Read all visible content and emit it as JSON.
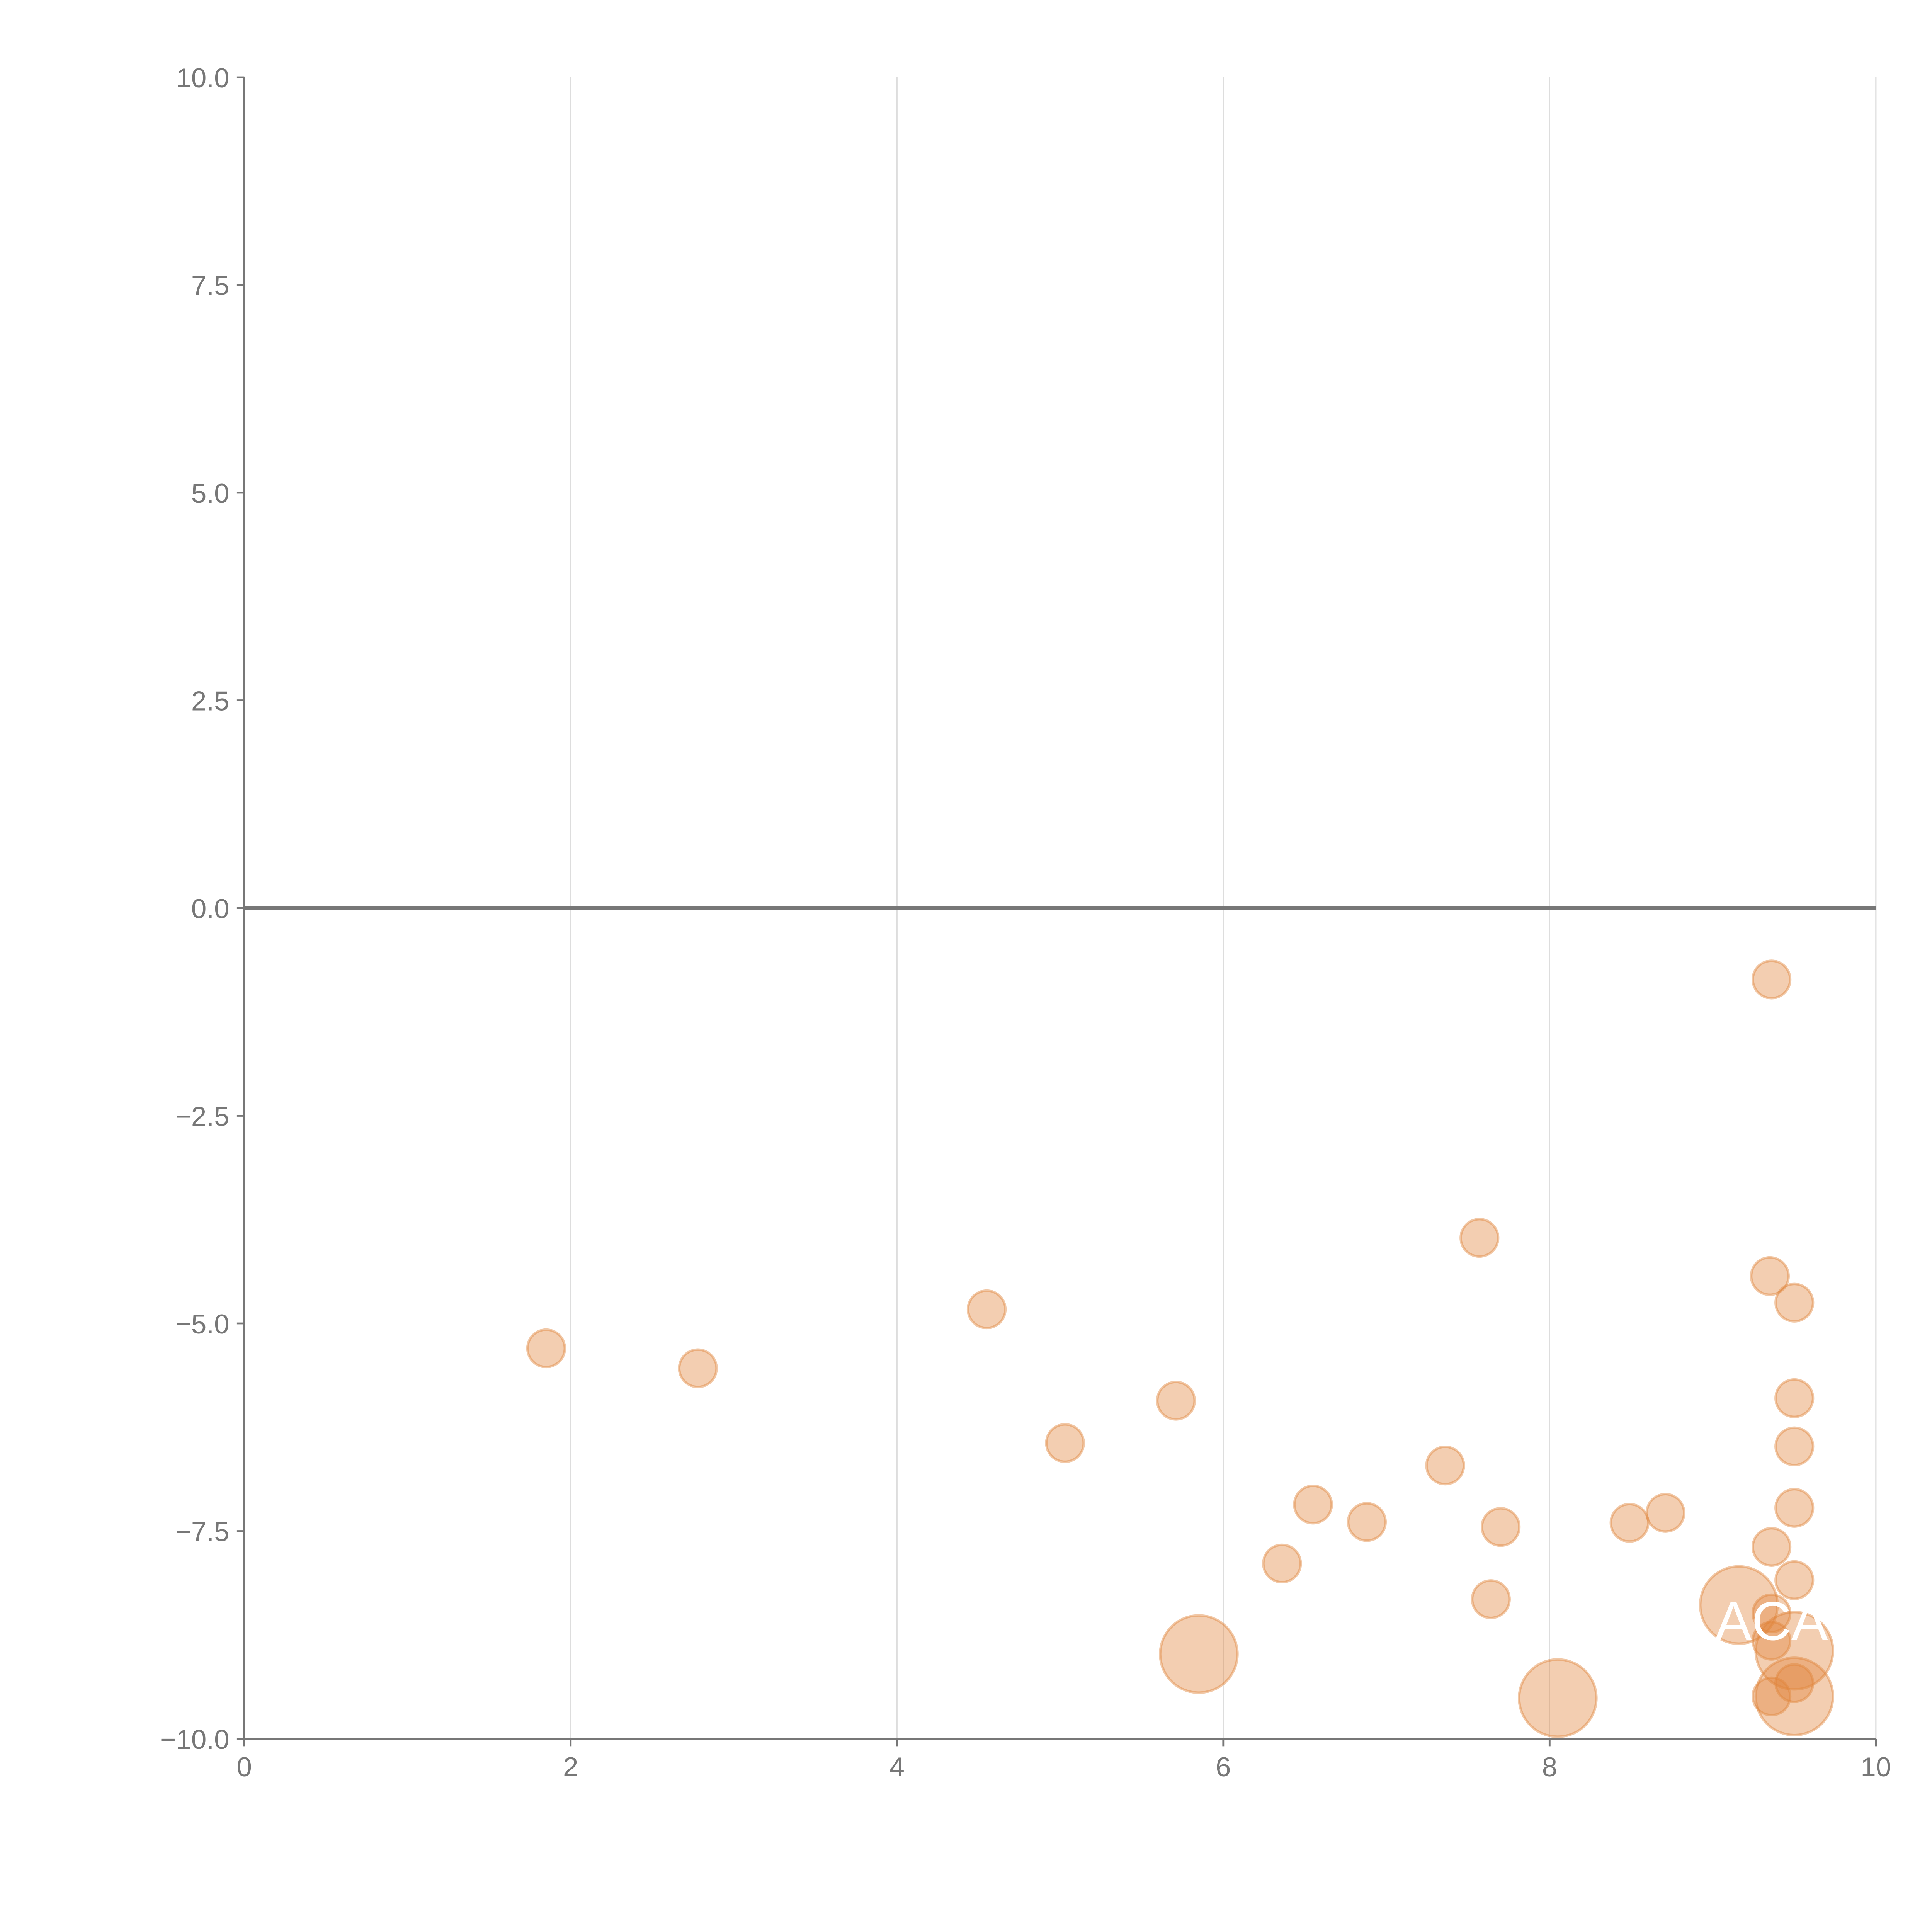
{
  "chart_data": {
    "type": "scatter",
    "title": "",
    "xlabel": "",
    "ylabel": "",
    "xlim": [
      0,
      10
    ],
    "ylim": [
      -10,
      10
    ],
    "xticks": [
      "0",
      "2",
      "4",
      "6",
      "8",
      "10"
    ],
    "yticks": [
      "10.0",
      "7.5",
      "5.0",
      "2.5",
      "0.0",
      "−2.5",
      "−5.0",
      "−7.5",
      "−10.0"
    ],
    "grid": "vertical",
    "zero_line": true,
    "color": "#e0853c",
    "points": [
      {
        "x": 9.36,
        "y": -0.86,
        "size": 1
      },
      {
        "x": 7.57,
        "y": -3.97,
        "size": 1
      },
      {
        "x": 9.35,
        "y": -4.43,
        "size": 1
      },
      {
        "x": 9.5,
        "y": -4.75,
        "size": 1
      },
      {
        "x": 4.55,
        "y": -4.83,
        "size": 1
      },
      {
        "x": 1.85,
        "y": -5.3,
        "size": 1
      },
      {
        "x": 2.78,
        "y": -5.54,
        "size": 1
      },
      {
        "x": 5.71,
        "y": -5.93,
        "size": 1
      },
      {
        "x": 9.5,
        "y": -5.9,
        "size": 1
      },
      {
        "x": 5.03,
        "y": -6.44,
        "size": 1
      },
      {
        "x": 9.5,
        "y": -6.48,
        "size": 1
      },
      {
        "x": 7.36,
        "y": -6.71,
        "size": 1
      },
      {
        "x": 6.55,
        "y": -7.18,
        "size": 1
      },
      {
        "x": 9.5,
        "y": -7.22,
        "size": 1
      },
      {
        "x": 8.71,
        "y": -7.28,
        "size": 1
      },
      {
        "x": 6.88,
        "y": -7.39,
        "size": 1
      },
      {
        "x": 8.49,
        "y": -7.4,
        "size": 1
      },
      {
        "x": 7.7,
        "y": -7.45,
        "size": 1
      },
      {
        "x": 9.36,
        "y": -7.69,
        "size": 1
      },
      {
        "x": 6.36,
        "y": -7.89,
        "size": 1
      },
      {
        "x": 9.5,
        "y": -8.09,
        "size": 1
      },
      {
        "x": 7.64,
        "y": -8.32,
        "size": 1
      },
      {
        "x": 9.16,
        "y": -8.39,
        "size": 2
      },
      {
        "x": 9.36,
        "y": -8.49,
        "size": 1
      },
      {
        "x": 9.36,
        "y": -8.82,
        "size": 1
      },
      {
        "x": 9.5,
        "y": -8.94,
        "size": 2
      },
      {
        "x": 9.5,
        "y": -9.33,
        "size": 1
      },
      {
        "x": 9.36,
        "y": -9.49,
        "size": 1
      },
      {
        "x": 9.5,
        "y": -9.49,
        "size": 2
      },
      {
        "x": 5.85,
        "y": -8.98,
        "size": 2
      },
      {
        "x": 8.05,
        "y": -9.51,
        "size": 2
      }
    ],
    "annotations": [
      {
        "text": "ACA",
        "x": 9.36,
        "y": -8.6
      }
    ]
  }
}
